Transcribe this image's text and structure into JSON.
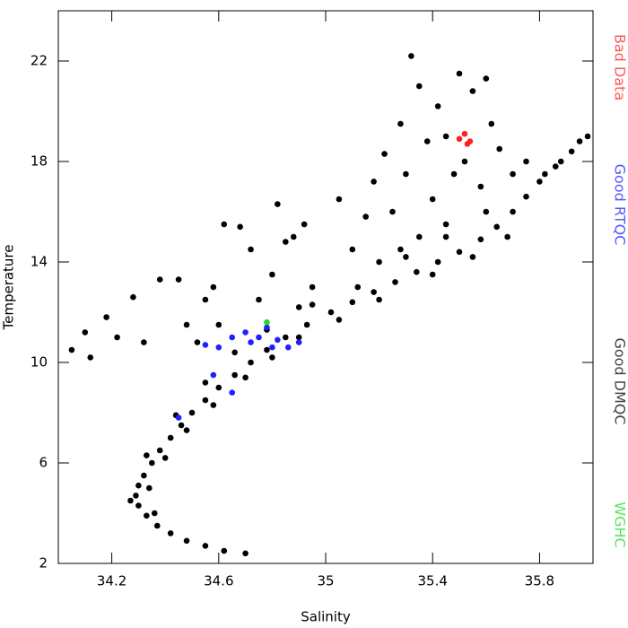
{
  "chart_data": {
    "type": "scatter",
    "x_label": "Salinity",
    "y_label": "Temperature",
    "xlim": [
      34.0,
      36.0
    ],
    "ylim": [
      2,
      24
    ],
    "xticks": [
      34.2,
      34.6,
      35.0,
      35.4,
      35.8
    ],
    "yticks": [
      2,
      6,
      10,
      14,
      18,
      22
    ],
    "series": [
      {
        "name": "Bad Data",
        "color": "#ff2020",
        "x": [
          35.5,
          35.52,
          35.54,
          35.53
        ],
        "values": [
          18.9,
          19.1,
          18.8,
          18.7
        ]
      },
      {
        "name": "Good RTQC",
        "color": "#2020ff",
        "x": [
          34.55,
          34.6,
          34.65,
          34.7,
          34.75,
          34.78,
          34.82,
          34.86,
          34.9,
          34.8,
          34.72,
          34.65,
          34.45,
          34.58
        ],
        "values": [
          10.7,
          10.6,
          11.0,
          11.2,
          11.0,
          11.4,
          10.9,
          10.6,
          10.8,
          10.6,
          10.8,
          8.8,
          7.8,
          9.5
        ]
      },
      {
        "name": "Good DMQC",
        "color": "#000000",
        "x": [
          34.7,
          34.62,
          34.55,
          34.48,
          34.42,
          34.37,
          34.33,
          34.3,
          34.29,
          34.3,
          34.32,
          34.35,
          34.38,
          34.42,
          34.46,
          34.5,
          34.55,
          34.6,
          34.66,
          34.72,
          34.78,
          34.85,
          34.93,
          35.02,
          35.1,
          35.18,
          35.26,
          35.34,
          35.42,
          35.5,
          35.58,
          35.64,
          35.7,
          35.75,
          35.8,
          35.86,
          35.92,
          35.98,
          34.36,
          34.34,
          34.4,
          34.48,
          34.58,
          34.7,
          34.8,
          34.9,
          35.05,
          35.2,
          35.4,
          35.55,
          35.68,
          34.27,
          34.33,
          34.44,
          34.55,
          34.66,
          34.78,
          34.95,
          35.12,
          35.3,
          35.45,
          35.6,
          34.05,
          34.1,
          34.12,
          34.18,
          34.22,
          34.28,
          34.32,
          34.38,
          34.45,
          34.48,
          34.52,
          34.55,
          34.58,
          34.62,
          34.68,
          34.72,
          34.75,
          34.8,
          34.82,
          34.85,
          34.88,
          34.92,
          34.95,
          34.9,
          34.6,
          35.05,
          35.1,
          35.15,
          35.18,
          35.2,
          35.22,
          35.25,
          35.28,
          35.3,
          35.32,
          35.35,
          35.38,
          35.4,
          35.42,
          35.45,
          35.48,
          35.5,
          35.52,
          35.55,
          35.58,
          35.6,
          35.62,
          35.65,
          35.7,
          35.75,
          35.82,
          35.88,
          35.95,
          35.45,
          35.35,
          35.28
        ],
        "values": [
          2.4,
          2.5,
          2.7,
          2.9,
          3.2,
          3.5,
          3.9,
          4.3,
          4.7,
          5.1,
          5.5,
          6.0,
          6.5,
          7.0,
          7.5,
          8.0,
          8.5,
          9.0,
          9.5,
          10.0,
          10.5,
          11.0,
          11.5,
          12.0,
          12.4,
          12.8,
          13.2,
          13.6,
          14.0,
          14.4,
          14.9,
          15.4,
          16.0,
          16.6,
          17.2,
          17.8,
          18.4,
          19.0,
          4.0,
          5.0,
          6.2,
          7.3,
          8.3,
          9.4,
          10.2,
          11.0,
          11.7,
          12.5,
          13.5,
          14.2,
          15.0,
          4.5,
          6.3,
          7.9,
          9.2,
          10.4,
          11.3,
          12.3,
          13.0,
          14.2,
          15.0,
          16.0,
          10.5,
          11.2,
          10.2,
          11.8,
          11.0,
          12.6,
          10.8,
          13.3,
          13.3,
          11.5,
          10.8,
          12.5,
          13.0,
          15.5,
          15.4,
          14.5,
          12.5,
          13.5,
          16.3,
          14.8,
          15.0,
          15.5,
          13.0,
          12.2,
          11.5,
          16.5,
          14.5,
          15.8,
          17.2,
          14.0,
          18.3,
          16.0,
          19.5,
          17.5,
          22.2,
          21.0,
          18.8,
          16.5,
          20.2,
          19.0,
          17.5,
          21.5,
          18.0,
          20.8,
          17.0,
          21.3,
          19.5,
          18.5,
          17.5,
          18.0,
          17.5,
          18.0,
          18.8,
          15.5,
          15.0,
          14.5
        ]
      },
      {
        "name": "WGHC",
        "color": "#20dd20",
        "x": [
          34.78
        ],
        "values": [
          11.6
        ]
      }
    ]
  }
}
